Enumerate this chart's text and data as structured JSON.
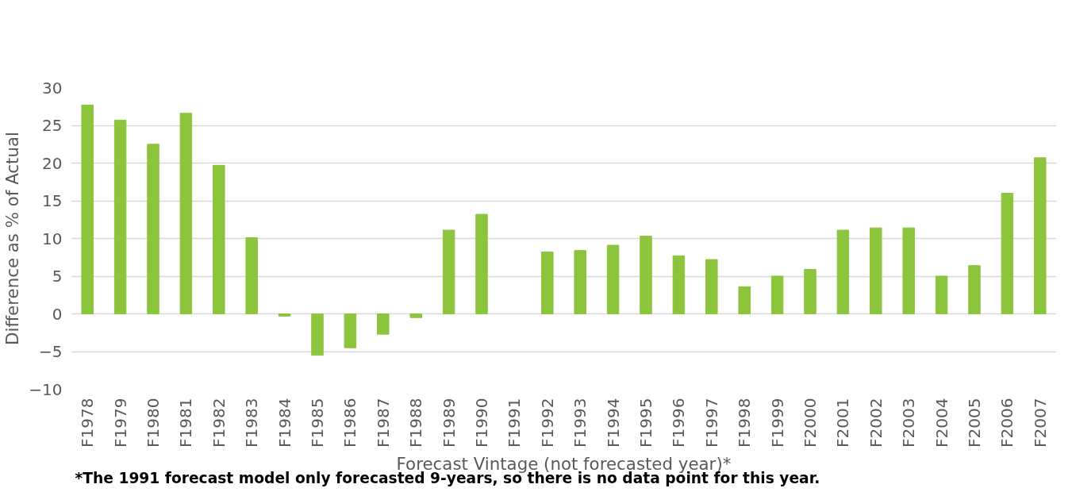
{
  "chart_data": {
    "type": "bar",
    "xlabel": "Forecast Vintage (not forecasted year)*",
    "ylabel": "Difference as % of Actual",
    "categories": [
      "F1978",
      "F1979",
      "F1980",
      "F1981",
      "F1982",
      "F1983",
      "F1984",
      "F1985",
      "F1986",
      "F1987",
      "F1988",
      "F1989",
      "F1990",
      "F1991",
      "F1992",
      "F1993",
      "F1994",
      "F1995",
      "F1996",
      "F1997",
      "F1998",
      "F1999",
      "F2000",
      "F2001",
      "F2002",
      "F2003",
      "F2004",
      "F2005",
      "F2006",
      "F2007"
    ],
    "values": [
      27.7,
      25.7,
      22.5,
      26.6,
      19.7,
      10.1,
      -0.3,
      -5.5,
      -4.5,
      -2.7,
      -0.5,
      11.1,
      13.2,
      null,
      8.2,
      8.4,
      9.1,
      10.3,
      7.7,
      7.2,
      3.6,
      5.0,
      5.9,
      11.1,
      11.4,
      11.4,
      5.0,
      6.4,
      16.0,
      20.7
    ],
    "color": "#8cc43c",
    "ylim": [
      -10,
      30
    ],
    "yticks": [
      -10,
      -5,
      0,
      5,
      10,
      15,
      20,
      25,
      30
    ],
    "grid": "y",
    "annotations": [
      "*The 1991 forecast model only forecasted 9-years, so there is no data point for this year."
    ]
  }
}
